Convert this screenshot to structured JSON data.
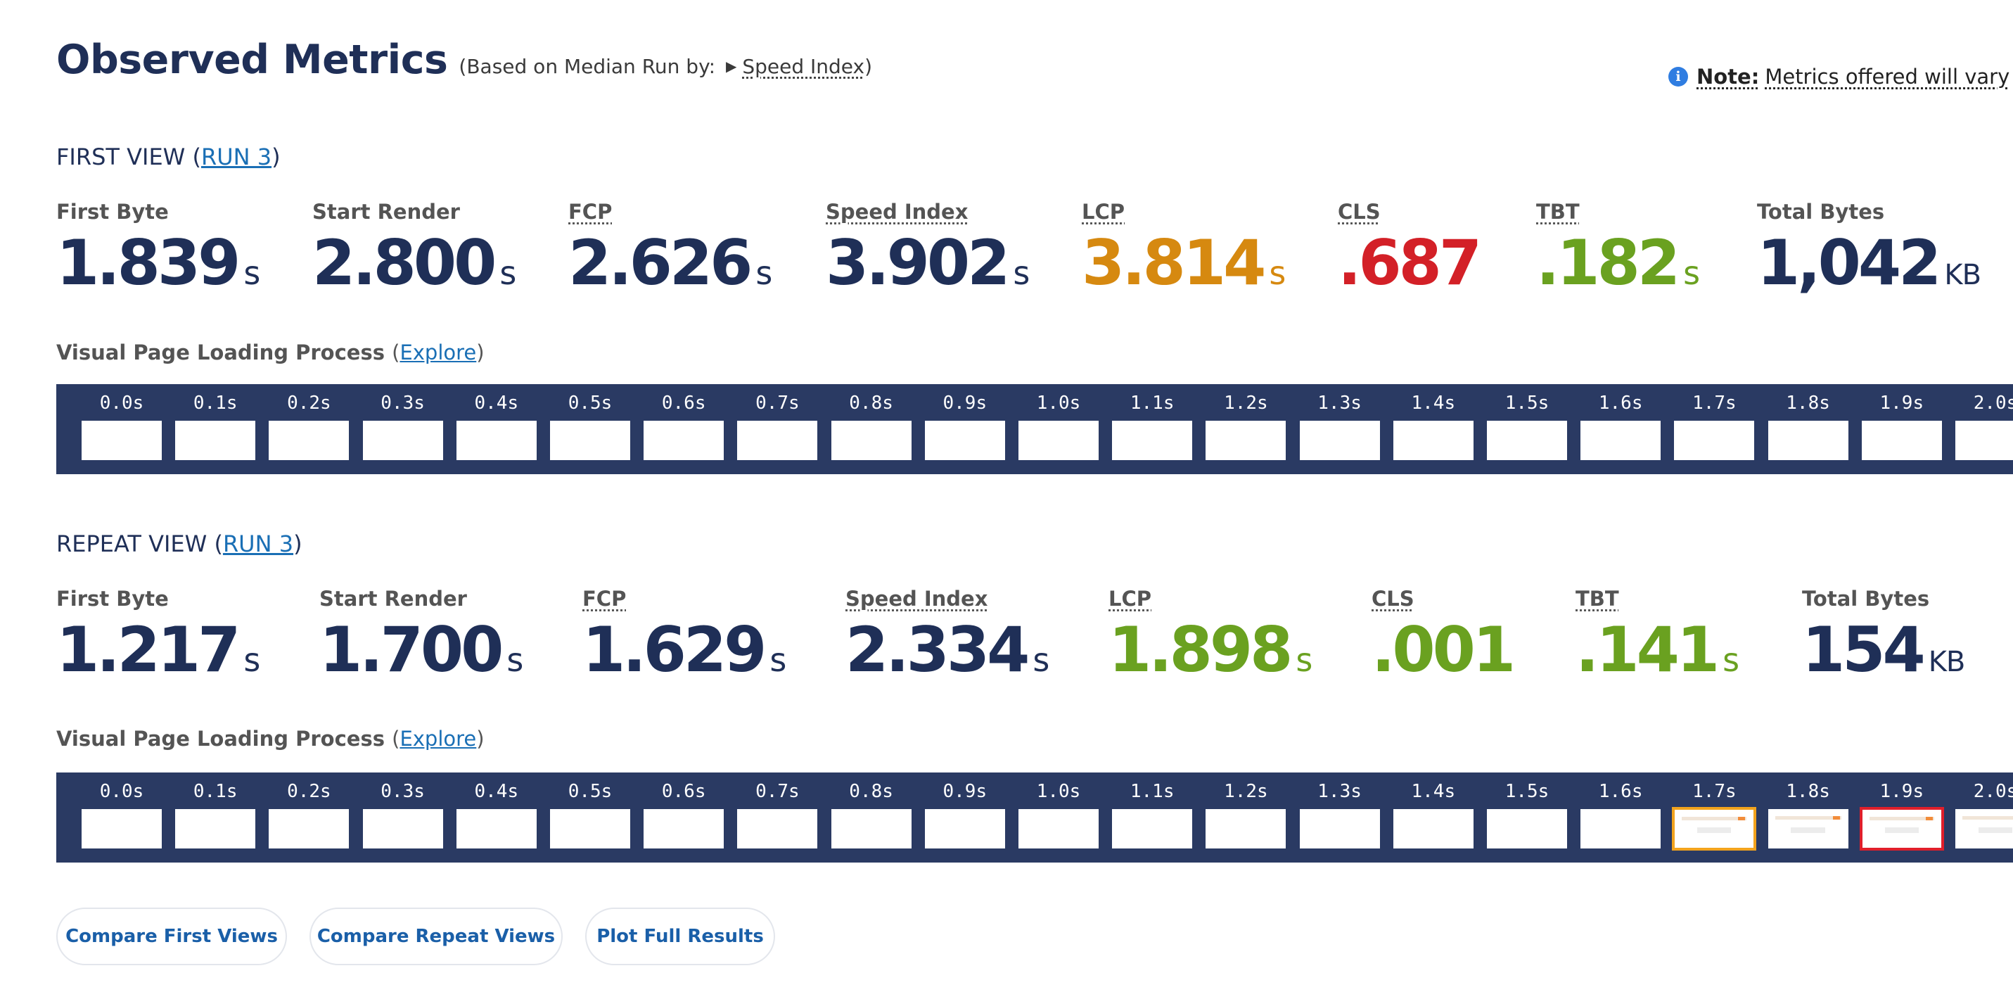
{
  "header": {
    "title": "Observed Metrics",
    "subtitle_prefix": "(Based on Median Run by:",
    "median_metric": "Speed Index",
    "subtitle_suffix": ")",
    "note_label": "Note:",
    "note_text": "Metrics offered will vary"
  },
  "first_view": {
    "title": "FIRST VIEW (",
    "run_link": "RUN 3",
    "title_close": ")",
    "metrics": [
      {
        "label": "First Byte",
        "value": "1.839",
        "unit": "s",
        "color": "#1f2f57",
        "abbr": false
      },
      {
        "label": "Start Render",
        "value": "2.800",
        "unit": "s",
        "color": "#1f2f57",
        "abbr": false
      },
      {
        "label": "FCP",
        "value": "2.626",
        "unit": "s",
        "color": "#1f2f57",
        "abbr": true
      },
      {
        "label": "Speed Index",
        "value": "3.902",
        "unit": "s",
        "color": "#1f2f57",
        "abbr": true
      },
      {
        "label": "LCP",
        "value": "3.814",
        "unit": "s",
        "color": "#d68910",
        "abbr": true
      },
      {
        "label": "CLS",
        "value": ".687",
        "unit": "",
        "color": "#d32027",
        "abbr": true
      },
      {
        "label": "TBT",
        "value": ".182",
        "unit": "s",
        "color": "#6aa120",
        "abbr": true
      },
      {
        "label": "Total Bytes",
        "value": "1,042",
        "unit": "KB",
        "color": "#1f2f57",
        "abbr": false
      }
    ],
    "visual_label": "Visual Page Loading Process",
    "visual_paren_open": "(",
    "visual_link": "Explore",
    "visual_paren_close": ")",
    "frames": [
      {
        "time": "0.0s",
        "state": "blank"
      },
      {
        "time": "0.1s",
        "state": "blank"
      },
      {
        "time": "0.2s",
        "state": "blank"
      },
      {
        "time": "0.3s",
        "state": "blank"
      },
      {
        "time": "0.4s",
        "state": "blank"
      },
      {
        "time": "0.5s",
        "state": "blank"
      },
      {
        "time": "0.6s",
        "state": "blank"
      },
      {
        "time": "0.7s",
        "state": "blank"
      },
      {
        "time": "0.8s",
        "state": "blank"
      },
      {
        "time": "0.9s",
        "state": "blank"
      },
      {
        "time": "1.0s",
        "state": "blank"
      },
      {
        "time": "1.1s",
        "state": "blank"
      },
      {
        "time": "1.2s",
        "state": "blank"
      },
      {
        "time": "1.3s",
        "state": "blank"
      },
      {
        "time": "1.4s",
        "state": "blank"
      },
      {
        "time": "1.5s",
        "state": "blank"
      },
      {
        "time": "1.6s",
        "state": "blank"
      },
      {
        "time": "1.7s",
        "state": "blank"
      },
      {
        "time": "1.8s",
        "state": "blank"
      },
      {
        "time": "1.9s",
        "state": "blank"
      },
      {
        "time": "2.0s",
        "state": "blank"
      }
    ]
  },
  "repeat_view": {
    "title": "REPEAT VIEW (",
    "run_link": "RUN 3",
    "title_close": ")",
    "metrics": [
      {
        "label": "First Byte",
        "value": "1.217",
        "unit": "s",
        "color": "#1f2f57",
        "abbr": false
      },
      {
        "label": "Start Render",
        "value": "1.700",
        "unit": "s",
        "color": "#1f2f57",
        "abbr": false
      },
      {
        "label": "FCP",
        "value": "1.629",
        "unit": "s",
        "color": "#1f2f57",
        "abbr": true
      },
      {
        "label": "Speed Index",
        "value": "2.334",
        "unit": "s",
        "color": "#1f2f57",
        "abbr": true
      },
      {
        "label": "LCP",
        "value": "1.898",
        "unit": "s",
        "color": "#6aa120",
        "abbr": true
      },
      {
        "label": "CLS",
        "value": ".001",
        "unit": "",
        "color": "#6aa120",
        "abbr": true
      },
      {
        "label": "TBT",
        "value": ".141",
        "unit": "s",
        "color": "#6aa120",
        "abbr": true
      },
      {
        "label": "Total Bytes",
        "value": "154",
        "unit": "KB",
        "color": "#1f2f57",
        "abbr": false
      }
    ],
    "visual_label": "Visual Page Loading Process",
    "visual_paren_open": "(",
    "visual_link": "Explore",
    "visual_paren_close": ")",
    "frames": [
      {
        "time": "0.0s",
        "state": "blank"
      },
      {
        "time": "0.1s",
        "state": "blank"
      },
      {
        "time": "0.2s",
        "state": "blank"
      },
      {
        "time": "0.3s",
        "state": "blank"
      },
      {
        "time": "0.4s",
        "state": "blank"
      },
      {
        "time": "0.5s",
        "state": "blank"
      },
      {
        "time": "0.6s",
        "state": "blank"
      },
      {
        "time": "0.7s",
        "state": "blank"
      },
      {
        "time": "0.8s",
        "state": "blank"
      },
      {
        "time": "0.9s",
        "state": "blank"
      },
      {
        "time": "1.0s",
        "state": "blank"
      },
      {
        "time": "1.1s",
        "state": "blank"
      },
      {
        "time": "1.2s",
        "state": "blank"
      },
      {
        "time": "1.3s",
        "state": "blank"
      },
      {
        "time": "1.4s",
        "state": "blank"
      },
      {
        "time": "1.5s",
        "state": "blank"
      },
      {
        "time": "1.6s",
        "state": "blank"
      },
      {
        "time": "1.7s",
        "state": "orange"
      },
      {
        "time": "1.8s",
        "state": "content"
      },
      {
        "time": "1.9s",
        "state": "red"
      },
      {
        "time": "2.0s",
        "state": "content"
      }
    ]
  },
  "buttons": {
    "compare_first": "Compare First Views",
    "compare_repeat": "Compare Repeat Views",
    "plot_full": "Plot Full Results"
  }
}
